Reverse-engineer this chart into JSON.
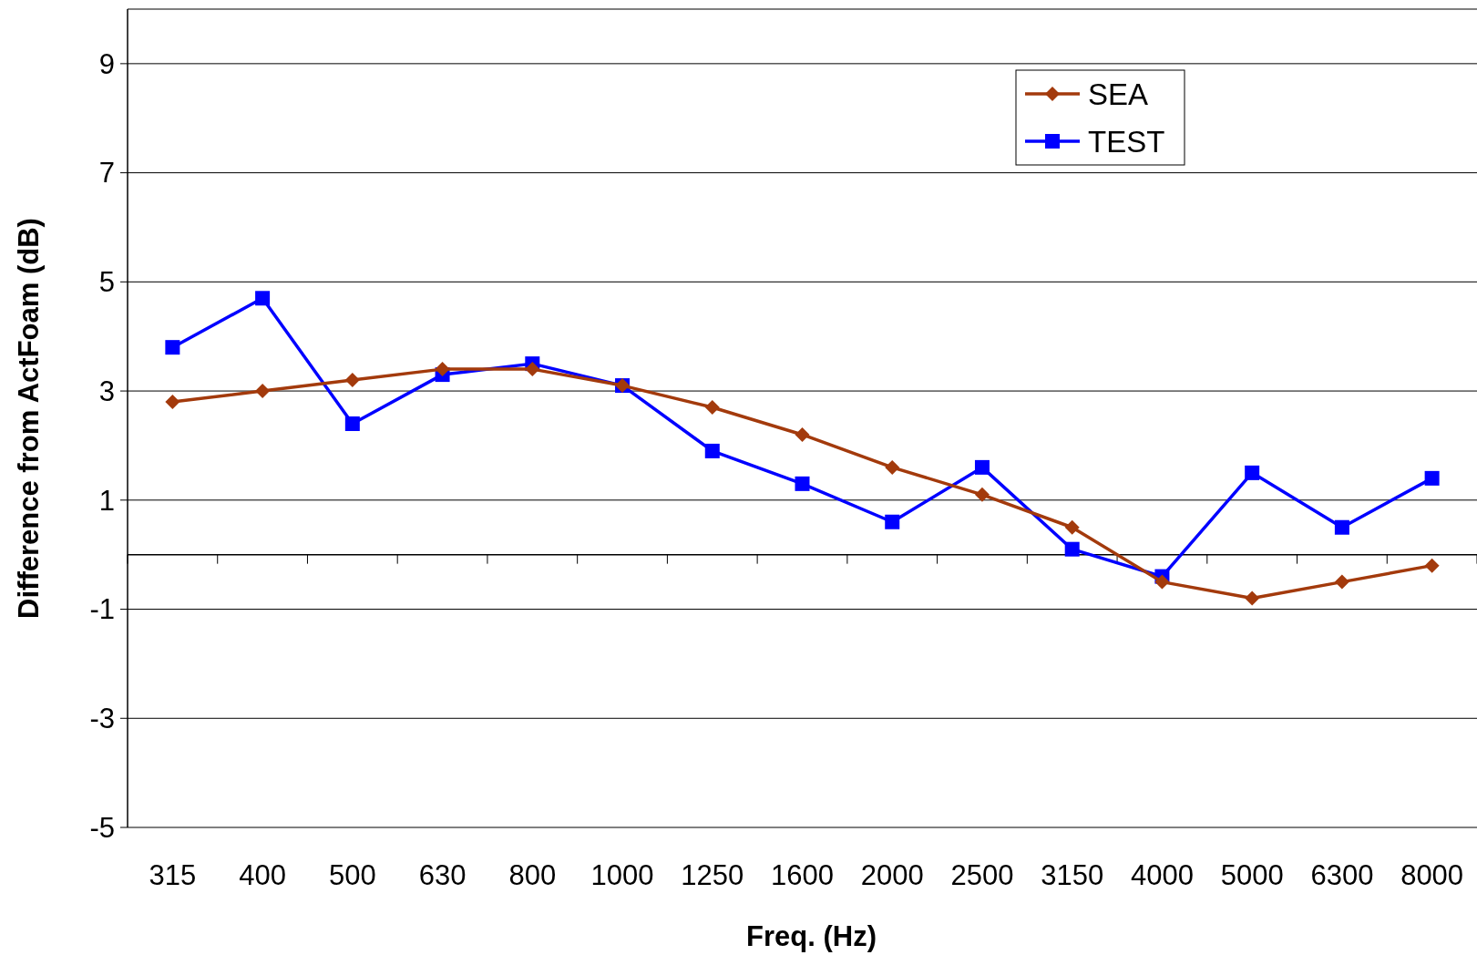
{
  "chart_data": {
    "type": "line",
    "xlabel": "Freq. (Hz)",
    "ylabel": "Difference from ActFoam (dB)",
    "categories": [
      "315",
      "400",
      "500",
      "630",
      "800",
      "1000",
      "1250",
      "1600",
      "2000",
      "2500",
      "3150",
      "4000",
      "5000",
      "6300",
      "8000"
    ],
    "series": [
      {
        "name": "SEA",
        "color": "#a33a0c",
        "marker": "diamond",
        "values": [
          2.8,
          3.0,
          3.2,
          3.4,
          3.4,
          3.1,
          2.7,
          2.2,
          1.6,
          1.1,
          0.5,
          -0.5,
          -0.8,
          -0.5,
          -0.2
        ]
      },
      {
        "name": "TEST",
        "color": "#0000ff",
        "marker": "square",
        "values": [
          3.8,
          4.7,
          2.4,
          3.3,
          3.5,
          3.1,
          1.9,
          1.3,
          0.6,
          1.6,
          0.1,
          -0.4,
          1.5,
          0.5,
          1.4
        ]
      }
    ],
    "ylim": [
      -5,
      10
    ],
    "yticks": [
      -5,
      -3,
      -1,
      1,
      3,
      5,
      7,
      9
    ],
    "grid": "y",
    "legend": "top right",
    "line_style": "solid"
  }
}
